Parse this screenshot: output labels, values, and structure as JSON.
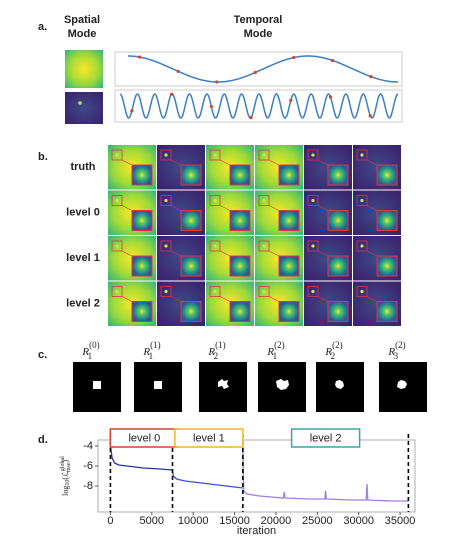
{
  "panel_a": {
    "label": "a.",
    "spatial_title": [
      "Spatial",
      "Mode"
    ],
    "temporal_title": [
      "Temporal",
      "Mode"
    ]
  },
  "panel_b": {
    "label": "b.",
    "rows": [
      "truth",
      "level 0",
      "level 1",
      "level 2"
    ],
    "row_colors": [
      "#3b7fc4",
      "#d9402b",
      "#f0b429",
      "#3aa6a6"
    ]
  },
  "panel_c": {
    "label": "c.",
    "masks": [
      {
        "base": "R",
        "sub": "1",
        "sup": "(0)"
      },
      {
        "base": "R",
        "sub": "1",
        "sup": "(1)"
      },
      {
        "base": "R",
        "sub": "2",
        "sup": "(1)"
      },
      {
        "base": "R",
        "sub": "1",
        "sup": "(2)"
      },
      {
        "base": "R",
        "sub": "2",
        "sup": "(2)"
      },
      {
        "base": "R",
        "sub": "3",
        "sup": "(2)"
      }
    ]
  },
  "chart_data": {
    "type": "line",
    "panel_label": "d.",
    "x_label": "iteration",
    "y_label": [
      "log",
      "10",
      "(ℒ",
      "global",
      "mse",
      ")"
    ],
    "xlim": [
      -1500,
      36800
    ],
    "ylim": [
      -10.6,
      -3.4
    ],
    "xticks": [
      0,
      5000,
      10000,
      15000,
      20000,
      25000,
      30000,
      35000
    ],
    "yticks": [
      -4,
      -6,
      -8
    ],
    "boundaries": [
      0,
      7500,
      16000,
      36000
    ],
    "level_boxes": [
      {
        "text": "level 0",
        "color": "#d9402b",
        "x": 4100
      },
      {
        "text": "level 1",
        "color": "#f0b429",
        "x": 11900
      },
      {
        "text": "level 2",
        "color": "#3aa6a6",
        "x": 26000
      }
    ],
    "series": [
      {
        "color": "#2a2fa8",
        "x": [
          0,
          200,
          500,
          1000,
          2000,
          4000,
          6000,
          7500
        ],
        "values": [
          -4.0,
          -5.2,
          -5.7,
          -5.9,
          -6.0,
          -6.2,
          -6.3,
          -6.4
        ]
      },
      {
        "color": "#3a4fd6",
        "x": [
          7500,
          7600,
          8000,
          9000,
          11000,
          13000,
          15000,
          16000
        ],
        "values": [
          -6.4,
          -7.0,
          -7.3,
          -7.5,
          -7.7,
          -7.9,
          -8.1,
          -8.2
        ]
      },
      {
        "color": "#a27ee0",
        "x": [
          16000,
          16100,
          16500,
          18000,
          20900,
          21000,
          21100,
          24000,
          25900,
          26000,
          26100,
          29000,
          30900,
          31000,
          31100,
          34000,
          36000
        ],
        "values": [
          -4.0,
          -8.5,
          -8.8,
          -9.0,
          -9.2,
          -8.6,
          -9.2,
          -9.3,
          -9.3,
          -8.5,
          -9.3,
          -9.4,
          -9.4,
          -7.8,
          -9.4,
          -9.5,
          -9.5
        ]
      }
    ]
  }
}
